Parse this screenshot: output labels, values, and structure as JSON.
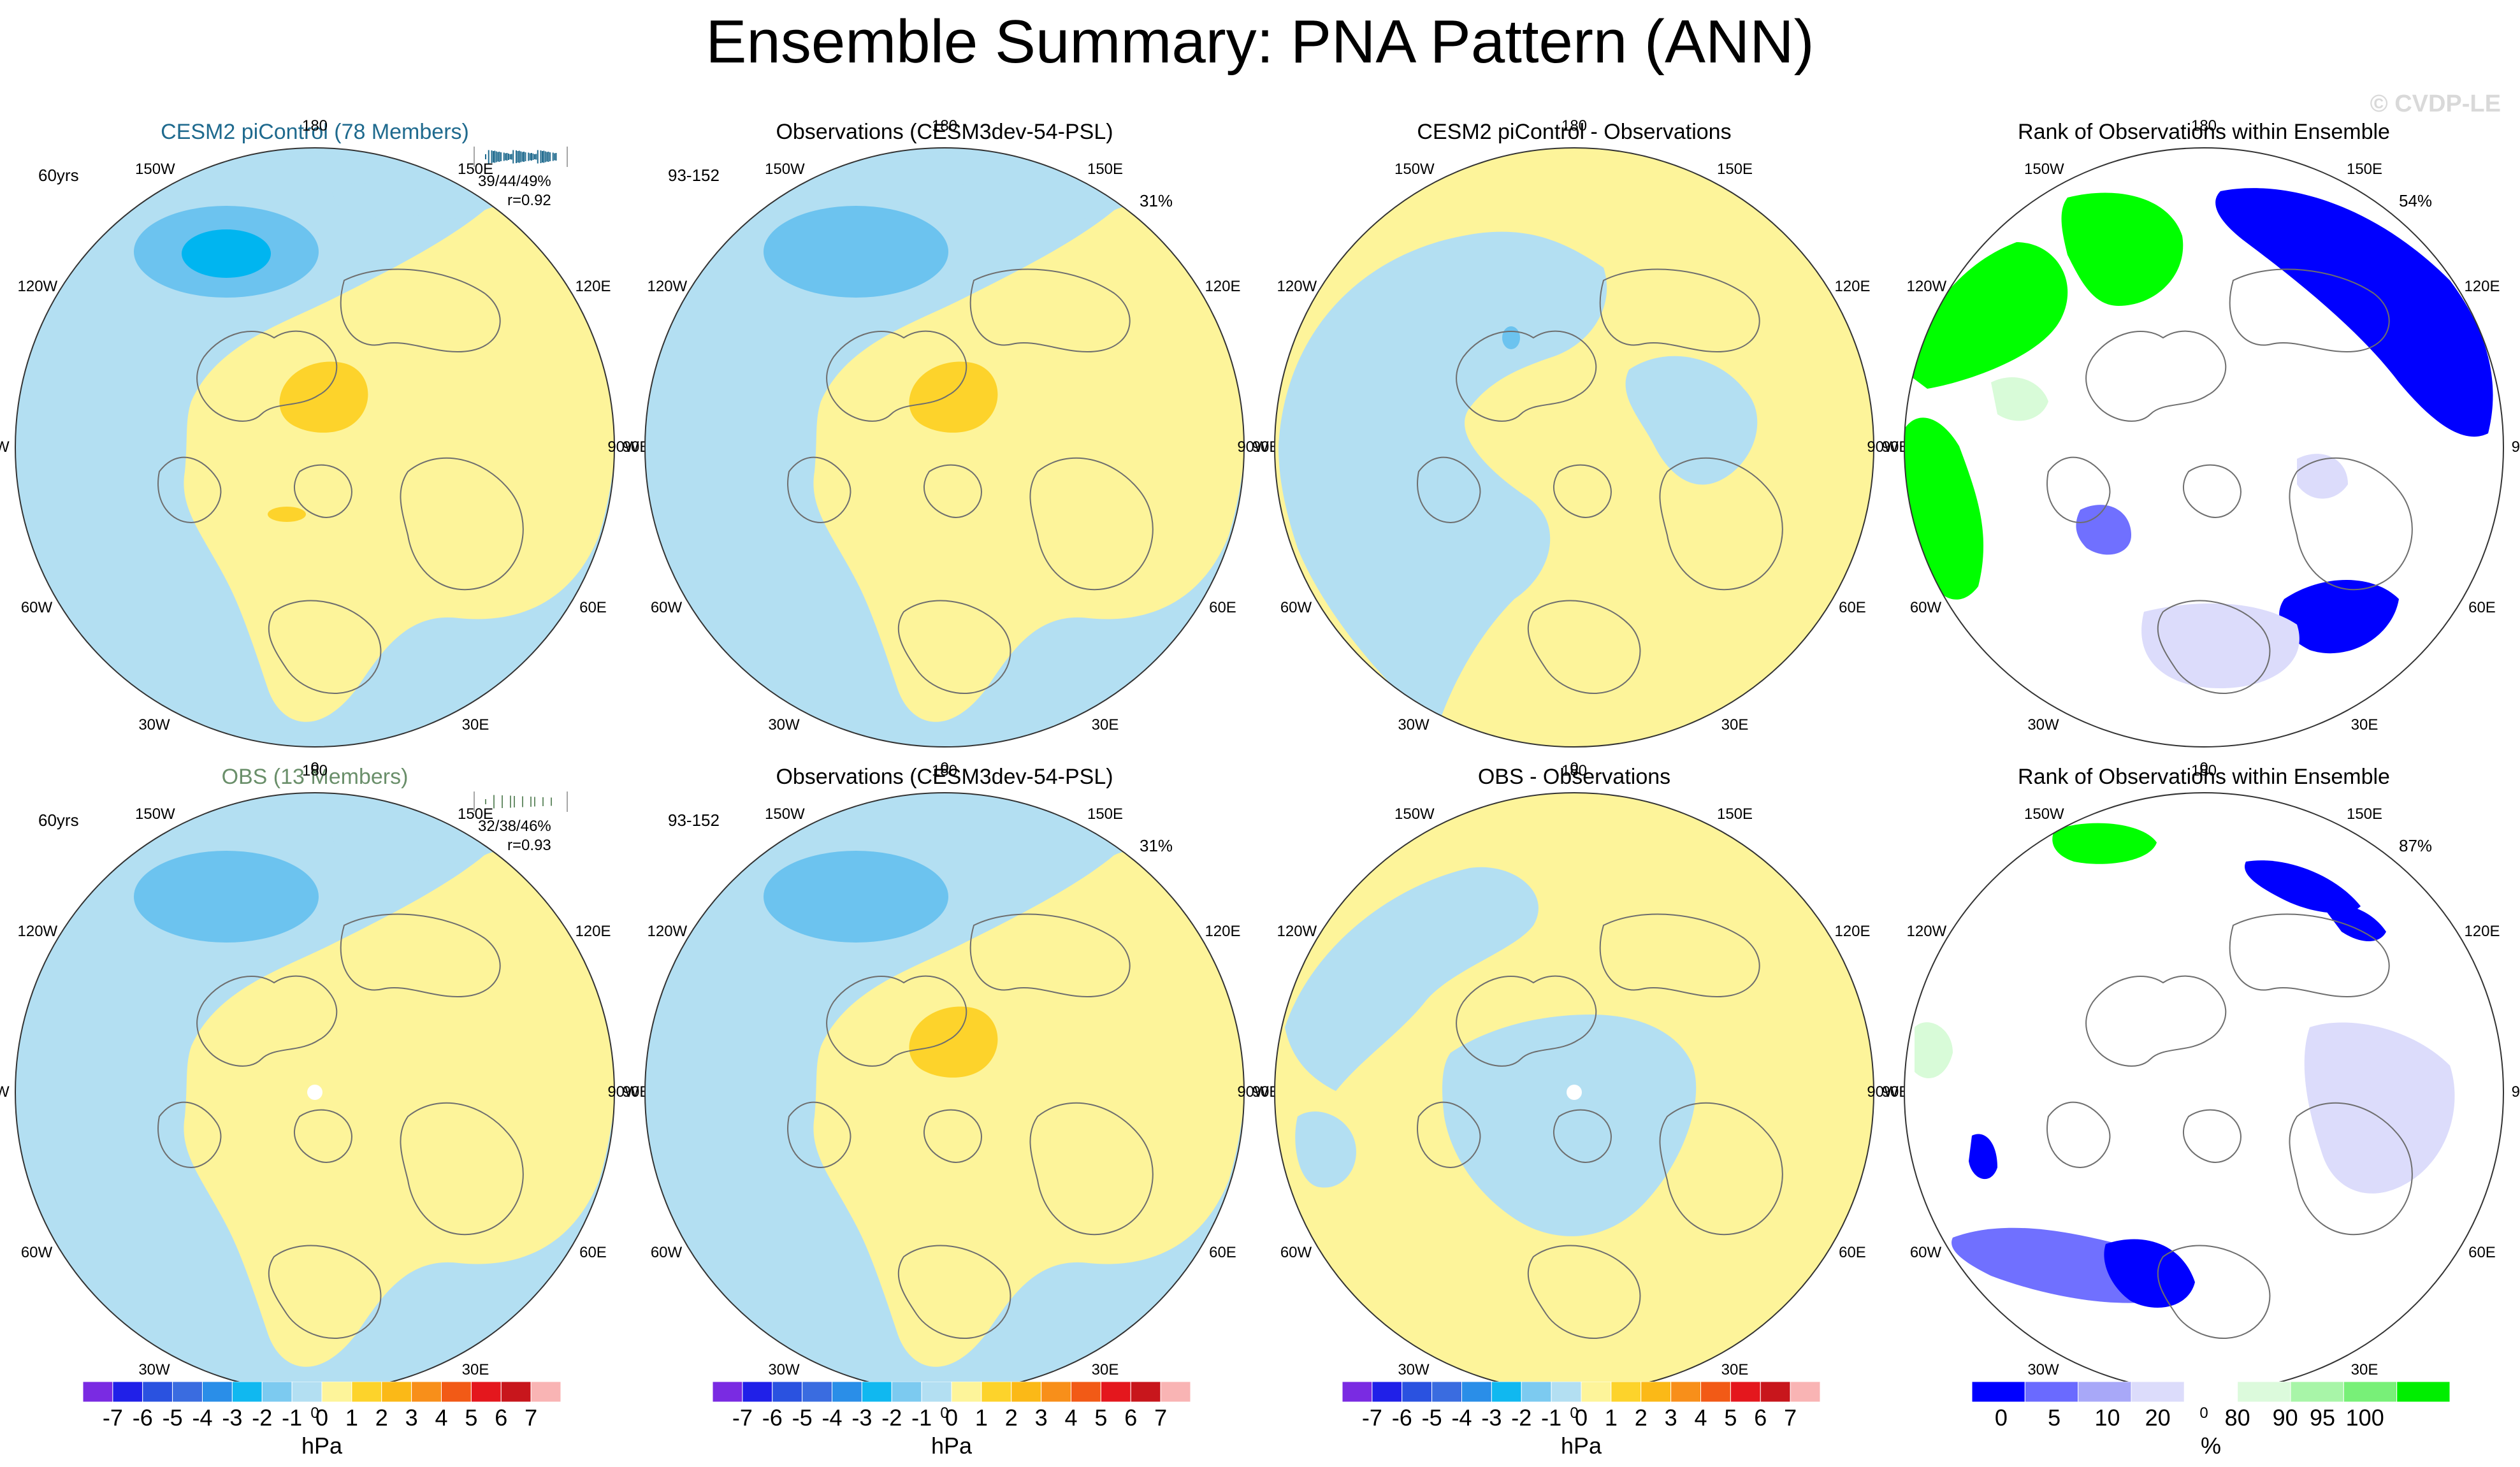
{
  "title": "Ensemble Summary: PNA Pattern (ANN)",
  "watermark": "© CVDP-LE",
  "lon_labels": [
    "180",
    "150W",
    "120W",
    "90W",
    "60W",
    "30W",
    "0",
    "30E",
    "60E",
    "90E",
    "120E",
    "150E"
  ],
  "panels": [
    {
      "title": "CESM2 piControl (78 Members)",
      "title_color": "#1f6a8e",
      "years": "60yrs",
      "stats": [
        "39/44/49%",
        "r=0.92"
      ],
      "spark_color": "#1f6a8e",
      "type": "pattern"
    },
    {
      "title": "Observations (CESM3dev-54-PSL)",
      "title_color": "#000000",
      "years": "93-152",
      "pct": "31%",
      "type": "pattern"
    },
    {
      "title": "CESM2 piControl - Observations",
      "title_color": "#000000",
      "type": "diff1"
    },
    {
      "title": "Rank of Observations within Ensemble",
      "title_color": "#000000",
      "pct": "54%",
      "type": "rank1"
    },
    {
      "title": "OBS (13 Members)",
      "title_color": "#6a8f6a",
      "years": "60yrs",
      "stats": [
        "32/38/46%",
        "r=0.93"
      ],
      "spark_color": "#6a8f6a",
      "type": "pattern2"
    },
    {
      "title": "Observations (CESM3dev-54-PSL)",
      "title_color": "#000000",
      "years": "93-152",
      "pct": "31%",
      "type": "pattern"
    },
    {
      "title": "OBS - Observations",
      "title_color": "#000000",
      "type": "diff2"
    },
    {
      "title": "Rank of Observations within Ensemble",
      "title_color": "#000000",
      "pct": "87%",
      "type": "rank2"
    }
  ],
  "colorbars": [
    {
      "labels": [
        "-7",
        "-6",
        "-5",
        "-4",
        "-3",
        "-2",
        "-1",
        "0",
        "1",
        "2",
        "3",
        "4",
        "5",
        "6",
        "7"
      ],
      "unit": "hPa"
    },
    {
      "labels": [
        "-7",
        "-6",
        "-5",
        "-4",
        "-3",
        "-2",
        "-1",
        "0",
        "1",
        "2",
        "3",
        "4",
        "5",
        "6",
        "7"
      ],
      "unit": "hPa"
    },
    {
      "labels": [
        "-7",
        "-6",
        "-5",
        "-4",
        "-3",
        "-2",
        "-1",
        "0",
        "1",
        "2",
        "3",
        "4",
        "5",
        "6",
        "7"
      ],
      "unit": "hPa"
    },
    {
      "labels": [
        "0",
        "5",
        "10",
        "20",
        "80",
        "90",
        "95",
        "100"
      ],
      "unit": "%"
    }
  ],
  "colors": {
    "neg_light": "#b3dff2",
    "neg_mid": "#6cc3ef",
    "neg_strong": "#00b5f0",
    "pos_light": "#fdf49a",
    "pos_mid": "#fdd32b",
    "rank_blue": "#0000ff",
    "rank_midblue": "#7070ff",
    "rank_lightblue": "#dcdcfb",
    "rank_green": "#00ff00",
    "rank_midgreen": "#90f090",
    "rank_lightgreen": "#d8fbd8"
  },
  "hpa_colors": [
    "#7a2be2",
    "#2020e8",
    "#2a52e0",
    "#3a6ce0",
    "#2a8ee8",
    "#10b8f0",
    "#7ccaf0",
    "#b3dff2",
    "#fdf49a",
    "#fdd32b",
    "#fbb917",
    "#f88f1a",
    "#f25a16",
    "#e4171d",
    "#c8161c",
    "#f9b4b4"
  ],
  "rank_colors": [
    "#0000ff",
    "#6a6aff",
    "#a8a8f8",
    "#dcdcfb",
    "#ffffff",
    "#dcfadc",
    "#a8f5a8",
    "#78f078",
    "#00ee00"
  ]
}
